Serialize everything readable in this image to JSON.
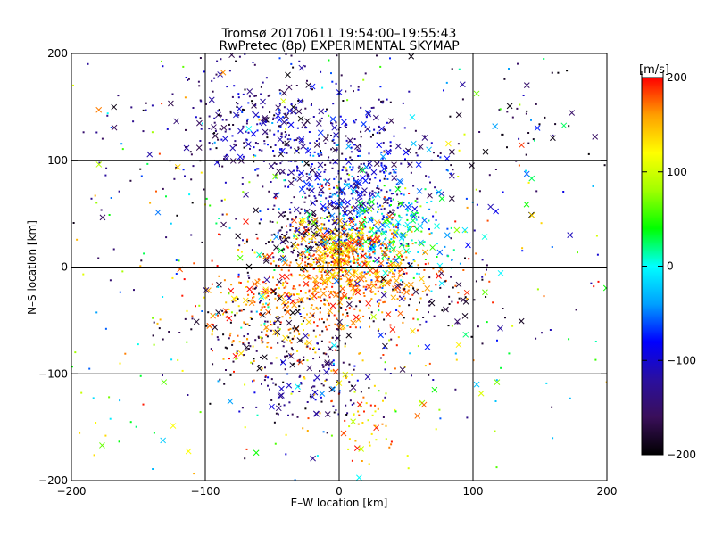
{
  "chart_data": {
    "type": "scatter",
    "title": "Tromsø 20170611 19:54:00–19:55:43",
    "subtitle": "RwPretec (8p) EXPERIMENTAL SKYMAP",
    "xlabel": "E–W location [km]",
    "ylabel": "N–S location [km]",
    "xlim": [
      -200,
      200
    ],
    "ylim": [
      -200,
      200
    ],
    "xticks": [
      -200,
      -100,
      0,
      100,
      200
    ],
    "yticks": [
      -200,
      -100,
      0,
      100,
      200
    ],
    "grid": true,
    "colorbar": {
      "label": "[m/s]",
      "range": [
        -200,
        200
      ],
      "ticks": [
        200,
        100,
        0,
        -100,
        -200
      ],
      "colors": [
        "#000000",
        "#3a0f5a",
        "#2a0fa0",
        "#0000ff",
        "#00a0ff",
        "#00ffff",
        "#00ff00",
        "#a0ff00",
        "#ffff00",
        "#ffa000",
        "#ff0000"
      ]
    },
    "markers": [
      "dot",
      "x"
    ],
    "clusters": [
      {
        "cx": -80,
        "cy": 140,
        "sx": 35,
        "sy": 40,
        "vmin": -200,
        "vmax": -90
      },
      {
        "cx": -40,
        "cy": 130,
        "sx": 25,
        "sy": 25,
        "vmin": -200,
        "vmax": -60
      },
      {
        "cx": 10,
        "cy": 100,
        "sx": 35,
        "sy": 40,
        "vmin": -180,
        "vmax": -60
      },
      {
        "cx": 10,
        "cy": 70,
        "sx": 20,
        "sy": 20,
        "vmin": -160,
        "vmax": -20
      },
      {
        "cx": 30,
        "cy": 30,
        "sx": 25,
        "sy": 20,
        "vmin": -80,
        "vmax": 60
      },
      {
        "cx": -20,
        "cy": 30,
        "sx": 25,
        "sy": 15,
        "vmin": -200,
        "vmax": -140
      },
      {
        "cx": 5,
        "cy": 15,
        "sx": 20,
        "sy": 15,
        "vmin": 100,
        "vmax": 200
      },
      {
        "cx": 0,
        "cy": -15,
        "sx": 40,
        "sy": 20,
        "vmin": 150,
        "vmax": 200
      },
      {
        "cx": -40,
        "cy": -40,
        "sx": 35,
        "sy": 30,
        "vmin": 120,
        "vmax": 200
      },
      {
        "cx": -50,
        "cy": -60,
        "sx": 30,
        "sy": 25,
        "vmin": -200,
        "vmax": -150
      },
      {
        "cx": -20,
        "cy": -110,
        "sx": 25,
        "sy": 20,
        "vmin": -200,
        "vmax": -80
      },
      {
        "cx": 20,
        "cy": -150,
        "sx": 20,
        "sy": 20,
        "vmin": 90,
        "vmax": 200
      },
      {
        "cx": 80,
        "cy": -30,
        "sx": 30,
        "sy": 15,
        "vmin": -200,
        "vmax": -150
      },
      {
        "cx": 130,
        "cy": 130,
        "sx": 35,
        "sy": 30,
        "vmin": -200,
        "vmax": -150
      },
      {
        "cx": -180,
        "cy": 130,
        "sx": 30,
        "sy": 60,
        "vmin": -200,
        "vmax": -100
      },
      {
        "cx": -160,
        "cy": -140,
        "sx": 30,
        "sy": 40,
        "vmin": -60,
        "vmax": 140
      },
      {
        "cx": 0,
        "cy": 0,
        "sx": 110,
        "sy": 110,
        "vmin": -200,
        "vmax": 200
      }
    ],
    "cluster_counts": [
      180,
      120,
      320,
      160,
      260,
      160,
      320,
      360,
      220,
      140,
      110,
      50,
      60,
      40,
      20,
      20,
      600
    ]
  }
}
